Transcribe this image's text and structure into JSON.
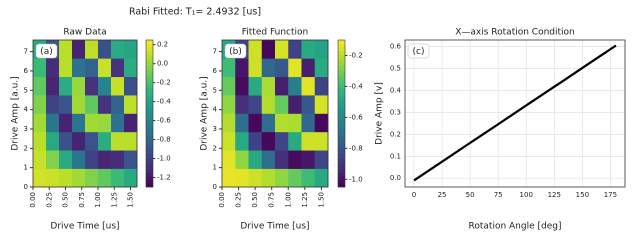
{
  "title": "Rabi Fitted: T₁= 2.4932 [us]",
  "chart_data": [
    {
      "type": "heatmap",
      "title": "Raw Data",
      "annotation": "(a)",
      "x_label": "Drive Time [us]",
      "y_label": "Drive Amp [a.u.]",
      "colormap": "viridis",
      "x": [
        0.1,
        0.3,
        0.5,
        0.7,
        0.9,
        1.1,
        1.3,
        1.5
      ],
      "y": [
        0.475,
        1.425,
        2.375,
        3.325,
        4.275,
        5.225,
        6.175,
        7.125
      ],
      "values": [
        [
          0.15,
          0.13,
          0.09,
          0.03,
          -0.05,
          -0.14,
          -0.25,
          -0.36
        ],
        [
          0.12,
          -0.05,
          -0.36,
          -0.7,
          -0.99,
          -1.14,
          -1.1,
          -0.9
        ],
        [
          0.09,
          -0.36,
          -0.91,
          -1.15,
          -0.9,
          -0.34,
          0.09,
          0.09
        ],
        [
          0.03,
          -0.7,
          -1.15,
          -0.7,
          0.03,
          0.01,
          -0.72,
          -1.15
        ],
        [
          -0.05,
          -0.99,
          -0.9,
          0.03,
          -0.14,
          -1.07,
          -0.81,
          0.1
        ],
        [
          -0.14,
          -1.14,
          -0.34,
          0.01,
          -1.07,
          -0.6,
          0.12,
          -0.92
        ],
        [
          -0.25,
          -1.1,
          0.09,
          -0.72,
          -0.81,
          0.12,
          -1.07,
          -0.35
        ],
        [
          -0.36,
          -0.9,
          0.09,
          -1.15,
          0.1,
          -0.92,
          -0.35,
          -0.39
        ]
      ],
      "xlim": [
        0,
        1.6
      ],
      "ylim": [
        0,
        7.6
      ],
      "xticks": [
        {
          "value": 0,
          "label": "0.00"
        },
        {
          "value": 0.25,
          "label": "0.25"
        },
        {
          "value": 0.5,
          "label": "0.50"
        },
        {
          "value": 0.75,
          "label": "0.75"
        },
        {
          "value": 1,
          "label": "1.00"
        },
        {
          "value": 1.25,
          "label": "1.25"
        },
        {
          "value": 1.5,
          "label": "1.50"
        }
      ],
      "yticks": [
        0,
        1,
        2,
        3,
        4,
        5,
        6,
        7
      ],
      "clim": [
        -1.3,
        0.25
      ],
      "cticks": [
        0.2,
        {
          "value": 0,
          "label": "0.0"
        },
        -0.2,
        -0.4,
        -0.6,
        -0.8,
        {
          "value": -1,
          "label": "-1.0"
        },
        -1.2
      ]
    },
    {
      "type": "heatmap",
      "title": "Fitted Function",
      "annotation": "(b)",
      "x_label": "Drive Time [us]",
      "y_label": "Drive Amp [a.u.]",
      "colormap": "viridis",
      "x": [
        0.1,
        0.3,
        0.5,
        0.7,
        0.9,
        1.1,
        1.3,
        1.5
      ],
      "y": [
        0.475,
        1.425,
        2.375,
        3.325,
        4.275,
        5.225,
        6.175,
        7.125
      ],
      "values": [
        [
          -0.13,
          -0.14,
          -0.17,
          -0.21,
          -0.26,
          -0.33,
          -0.4,
          -0.48
        ],
        [
          -0.14,
          -0.26,
          -0.48,
          -0.71,
          -0.92,
          -1.02,
          -0.99,
          -0.85
        ],
        [
          -0.17,
          -0.48,
          -0.86,
          -1.03,
          -0.85,
          -0.47,
          -0.17,
          -0.17
        ],
        [
          -0.21,
          -0.71,
          -1.03,
          -0.71,
          -0.21,
          -0.22,
          -0.73,
          -1.03
        ],
        [
          -0.26,
          -0.92,
          -0.85,
          -0.21,
          -0.33,
          -0.97,
          -0.79,
          -0.16
        ],
        [
          -0.33,
          -1.02,
          -0.47,
          -0.22,
          -0.97,
          -0.64,
          -0.14,
          -0.86
        ],
        [
          -0.4,
          -0.99,
          -0.17,
          -0.73,
          -0.79,
          -0.14,
          -0.97,
          -0.47
        ],
        [
          -0.48,
          -0.85,
          -0.17,
          -1.03,
          -0.16,
          -0.86,
          -0.47,
          -0.5
        ]
      ],
      "xlim": [
        0,
        1.6
      ],
      "ylim": [
        0,
        7.6
      ],
      "xticks": [
        {
          "value": 0,
          "label": "0.00"
        },
        {
          "value": 0.25,
          "label": "0.25"
        },
        {
          "value": 0.5,
          "label": "0.50"
        },
        {
          "value": 0.75,
          "label": "0.75"
        },
        {
          "value": 1,
          "label": "1.00"
        },
        {
          "value": 1.25,
          "label": "1.25"
        },
        {
          "value": 1.5,
          "label": "1.50"
        }
      ],
      "yticks": [
        0,
        1,
        2,
        3,
        4,
        5,
        6,
        7
      ],
      "clim": [
        -1.05,
        -0.1
      ],
      "cticks": [
        -0.2,
        -0.4,
        -0.6,
        -0.8,
        {
          "value": -1,
          "label": "-1.0"
        }
      ]
    },
    {
      "type": "line",
      "title": "X—axis Rotation Condition",
      "annotation": "(c)",
      "x_label": "Rotation Angle [deg]",
      "y_label": "Drive Amp [v]",
      "color": "#000000",
      "grid": true,
      "x": [
        0,
        15,
        30,
        45,
        60,
        75,
        90,
        105,
        120,
        135,
        150,
        165,
        180
      ],
      "values": [
        -0.01,
        0.041,
        0.0925,
        0.144,
        0.195,
        0.246,
        0.2975,
        0.349,
        0.4,
        0.451,
        0.5025,
        0.554,
        0.605
      ],
      "xlim": [
        -8,
        188
      ],
      "ylim": [
        -0.04,
        0.63
      ],
      "xticks": [
        0,
        25,
        50,
        75,
        100,
        125,
        150,
        175
      ],
      "yticks": [
        {
          "value": 0,
          "label": "0.0"
        },
        0.1,
        0.2,
        0.3,
        0.4,
        0.5,
        0.6
      ]
    }
  ]
}
